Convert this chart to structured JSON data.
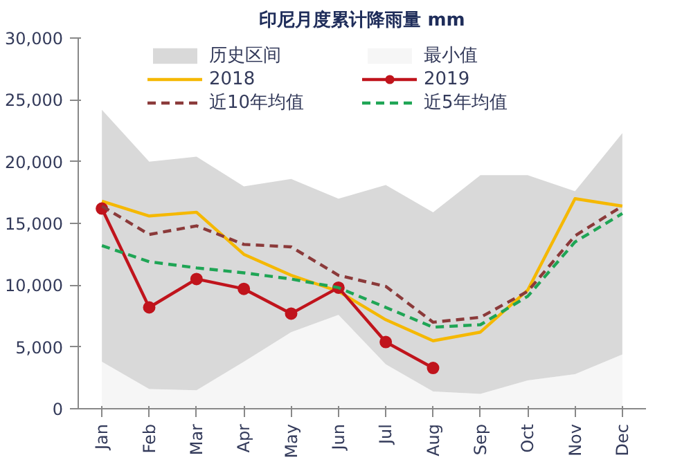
{
  "chart_data": {
    "type": "line",
    "title": "印尼月度累计降雨量 mm",
    "categories": [
      "Jan",
      "Feb",
      "Mar",
      "Apr",
      "May",
      "Jun",
      "Jul",
      "Aug",
      "Sep",
      "Oct",
      "Nov",
      "Dec"
    ],
    "stacked": true,
    "ylim": [
      0,
      30000
    ],
    "yticks": [
      {
        "value": 0,
        "label": "0"
      },
      {
        "value": 5000,
        "label": "5,000"
      },
      {
        "value": 10000,
        "label": "10,000"
      },
      {
        "value": 15000,
        "label": "15,000"
      },
      {
        "value": 20000,
        "label": "20,000"
      },
      {
        "value": 25000,
        "label": "25,000"
      },
      {
        "value": 30000,
        "label": "30,000"
      }
    ],
    "grid": false,
    "legend": "top",
    "series": [
      {
        "name": "最小值",
        "type": "area",
        "color": "#f6f6f6",
        "values": [
          3800,
          1600,
          1500,
          3800,
          6200,
          7600,
          3600,
          1400,
          1200,
          2300,
          2800,
          4400
        ]
      },
      {
        "name": "历史区间",
        "type": "area",
        "color": "#d9d9d9",
        "values": [
          20400,
          18400,
          18900,
          14200,
          12400,
          9400,
          14500,
          14500,
          17700,
          16600,
          14800,
          17900
        ]
      },
      {
        "name": "2018",
        "color": "#f5b800",
        "marker": "none",
        "line_style": "solid",
        "values": [
          16800,
          15600,
          15900,
          12500,
          10800,
          9500,
          7200,
          5500,
          6200,
          9600,
          17000,
          16400
        ]
      },
      {
        "name": "2019",
        "color": "#c0141c",
        "marker": "circle",
        "line_style": "solid",
        "values": [
          16200,
          8200,
          10500,
          9700,
          7700,
          9800,
          5400,
          3300,
          null,
          null,
          null,
          null
        ]
      },
      {
        "name": "近10年均值",
        "color": "#8b3a3a",
        "marker": "none",
        "line_style": "dashed",
        "values": [
          16400,
          14100,
          14800,
          13300,
          13100,
          10800,
          9900,
          7000,
          7400,
          9500,
          14000,
          16400
        ]
      },
      {
        "name": "近5年均值",
        "color": "#1fa555",
        "marker": "none",
        "line_style": "dashed",
        "values": [
          13200,
          11900,
          11400,
          11000,
          10500,
          9800,
          8200,
          6600,
          6800,
          9100,
          13500,
          15800
        ]
      }
    ]
  }
}
